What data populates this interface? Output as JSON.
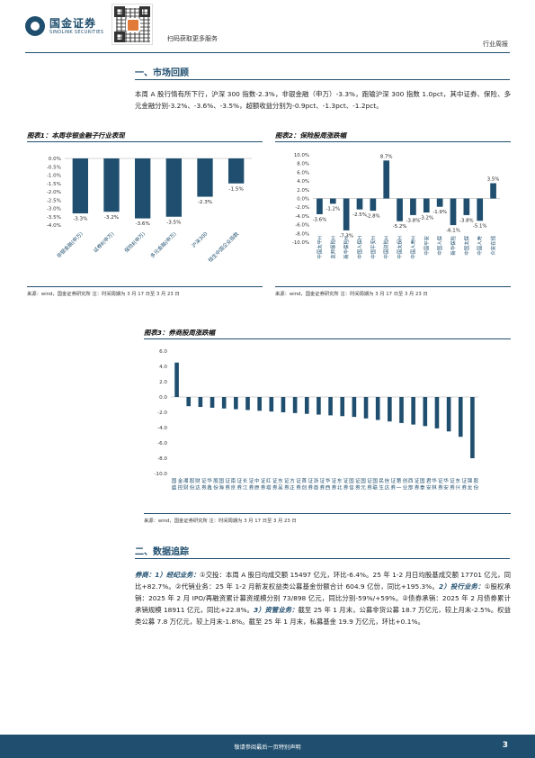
{
  "header": {
    "logo_cn": "国金证券",
    "logo_en": "SINOLINK SECURITIES",
    "scan_text": "扫码获取更多服务",
    "doc_type": "行业周报"
  },
  "section1": {
    "title": "一、市场回顾",
    "paragraph": "本周 A 股行情有所下行，沪深 300 指数-2.3%，非银金融（申万）-3.3%，跑输沪深 300 指数 1.0pct，其中证券、保险、多元金融分别-3.2%、-3.6%、-3.5%，超额收益分别为-0.9pct、-1.3pct、-1.2pct。"
  },
  "figure1": {
    "title": "图表1：本周非银金融子行业表现",
    "source": "来源：wind，国金证券研究所  注：时间周期为 3 月 17 日至 3 月 23 日"
  },
  "figure2": {
    "title": "图表2：保险股周涨跌幅",
    "source": "来源：wind，国金证券研究所  注：时间周期为 3 月 17 日至 3 月 23 日"
  },
  "figure3": {
    "title": "图表3：券商股周涨跌幅",
    "source": "来源：wind，国金证券研究所  注：时间周期为 3 月 17 日至 3 月 23 日"
  },
  "section2": {
    "title": "二、数据追踪",
    "lead": "券商：",
    "sub1": "1）经纪业务：",
    "text1": "①交投：本周 A 股日均成交额 15497 亿元，环比-6.4%。25 年 1-2 月日均股基成交额 17701 亿元，同比+82.7%。②代销业务：25 年 1-2 月新发权益类公募基金份额合计 604.9 亿份，同比+195.3%。",
    "sub2": "2）投行业务：",
    "text2": "①股权承销：2025 年 2 月 IPO/再融资累计募资规模分别 73/898 亿元，同比分别-59%/+59%。②债券承销：2025 年 2 月债券累计承销规模 18911 亿元，同比+22.8%。",
    "sub3": "3）资管业务：",
    "text3": "截至 25 年 1 月末，公募非货公募 18.7 万亿元，较上月末-2.5%。权益类公募 7.8 万亿元，较上月末-1.8%。截至 25 年 1 月末，私募基金 19.9 万亿元，环比+0.1%。"
  },
  "footer": {
    "text": "敬请参阅最后一页特别声明",
    "page": "3"
  },
  "colors": {
    "bar": "#1f4e6e",
    "bar_light": "#2e6a8e",
    "accent": "#1f4e6e"
  },
  "chart_data": [
    {
      "type": "bar",
      "categories": [
        "非银金融(申万)",
        "证券Ⅱ(申万)",
        "保险Ⅱ(申万)",
        "多元金融(申万)",
        "沪深300",
        "恒生中国企业指数"
      ],
      "values": [
        -3.3,
        -3.2,
        -3.6,
        -3.5,
        -2.3,
        -1.5
      ],
      "data_labels": [
        "-3.3%",
        "-3.2%",
        "-3.6%",
        "-3.5%",
        "-2.3%",
        "-1.5%"
      ],
      "yticks": [
        "0.0%",
        "-0.5%",
        "-1.0%",
        "-1.5%",
        "-2.0%",
        "-2.5%",
        "-3.0%",
        "-3.5%",
        "-4.0%"
      ],
      "ylim": [
        -4.0,
        0.0
      ],
      "title": "",
      "xlabel": "",
      "ylabel": ""
    },
    {
      "type": "bar",
      "categories": [
        "中国太平H",
        "友邦保险H",
        "新华保险H",
        "中国人保H",
        "中国平安H",
        "中国财险H",
        "中国太保H",
        "中国人寿H",
        "中国平安",
        "中国人保",
        "新华保险",
        "中国太保",
        "中国人寿",
        "众安在线"
      ],
      "values": [
        -3.6,
        -1.2,
        -7.3,
        -2.5,
        -2.8,
        8.7,
        -5.2,
        -3.8,
        -3.2,
        -1.9,
        -6.1,
        -3.8,
        -5.1,
        3.5
      ],
      "data_labels": [
        "-3.6%",
        "-1.2%",
        "-7.3%",
        "-2.5%",
        "-2.8%",
        "8.7%",
        "-5.2%",
        "-3.8%",
        "-3.2%",
        "-1.9%",
        "-6.1%",
        "-3.8%",
        "-5.1%",
        "3.5%"
      ],
      "yticks": [
        "10.0%",
        "8.0%",
        "6.0%",
        "4.0%",
        "2.0%",
        "0.0%",
        "-2.0%",
        "-4.0%",
        "-6.0%",
        "-8.0%",
        "-10.0%"
      ],
      "ylim": [
        -10.0,
        10.0
      ],
      "title": "",
      "xlabel": "",
      "ylabel": ""
    },
    {
      "type": "bar",
      "categories": [
        "国盛金控",
        "湘财股份",
        "财达证券",
        "华鑫股份",
        "国海证券",
        "南京证券",
        "长江证券",
        "中原证券",
        "红塔证券",
        "东吴证券",
        "方正证券",
        "首创证券",
        "浙商证券",
        "华西证券",
        "东北证券",
        "国信证券",
        "国元证券",
        "国联民生",
        "信达证券",
        "第一创业",
        "西部证券",
        "国泰君安",
        "华林证券",
        "华安证券",
        "东兴证券",
        "锦龙股份"
      ],
      "values": [
        4.5,
        -1.2,
        -1.3,
        -1.4,
        -1.5,
        -1.6,
        -1.7,
        -1.8,
        -1.9,
        -2.0,
        -2.1,
        -2.2,
        -2.3,
        -2.4,
        -2.5,
        -2.6,
        -2.8,
        -3.0,
        -3.2,
        -3.4,
        -3.6,
        -3.8,
        -4.1,
        -4.5,
        -5.2,
        -8.0
      ],
      "yticks": [
        "6.0",
        "4.0",
        "2.0",
        "0.0",
        "-2.0",
        "-4.0",
        "-6.0",
        "-8.0",
        "-10.0"
      ],
      "ylim": [
        -10.0,
        6.0
      ],
      "title": "",
      "xlabel": "",
      "ylabel": ""
    }
  ]
}
